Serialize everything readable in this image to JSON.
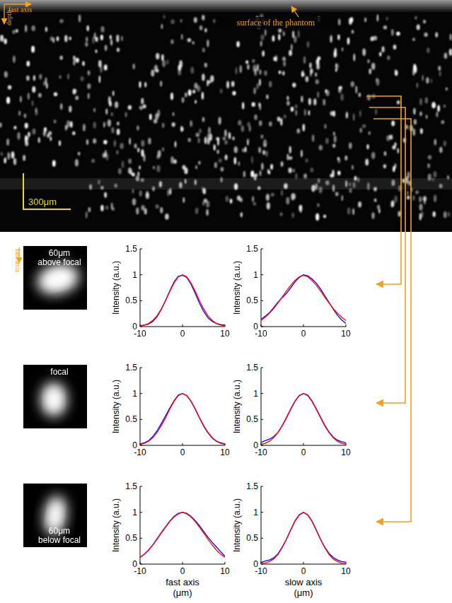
{
  "image": {
    "axis_labels": {
      "horizontal": "fast axis",
      "vertical": "depth"
    },
    "annotation": "surface of the phantom",
    "scale_bar": "300μm"
  },
  "psf_images": {
    "axis_label": "fast axis",
    "labels": [
      "60μm above focal",
      "focal",
      "60μm below focal"
    ]
  },
  "chart_data": [
    {
      "type": "line",
      "ylabel": "Intensity (a.u.)",
      "xlim": [
        -10,
        10
      ],
      "ylim": [
        0,
        1.5
      ],
      "xticks": [
        -10,
        0,
        10
      ],
      "yticks": [
        0,
        0.5,
        1,
        1.5
      ],
      "x": [
        -10,
        -9,
        -8,
        -7,
        -6,
        -5,
        -4,
        -3,
        -2,
        -1,
        0,
        1,
        2,
        3,
        4,
        5,
        6,
        7,
        8,
        9,
        10
      ],
      "series": [
        {
          "color": "#0000ff",
          "values": [
            0.02,
            0.03,
            0.05,
            0.1,
            0.19,
            0.33,
            0.5,
            0.69,
            0.86,
            0.97,
            0.99,
            0.95,
            0.82,
            0.64,
            0.45,
            0.29,
            0.17,
            0.1,
            0.06,
            0.04,
            0.03
          ]
        },
        {
          "color": "#ff0000",
          "values": [
            0.01,
            0.03,
            0.06,
            0.12,
            0.21,
            0.34,
            0.5,
            0.68,
            0.84,
            0.96,
            1.0,
            0.96,
            0.84,
            0.68,
            0.5,
            0.34,
            0.21,
            0.12,
            0.06,
            0.03,
            0.01
          ]
        }
      ]
    },
    {
      "type": "line",
      "ylabel": "Intensity (a.u.)",
      "xlim": [
        -10,
        10
      ],
      "ylim": [
        0,
        1.5
      ],
      "xticks": [
        -10,
        0,
        10
      ],
      "yticks": [
        0,
        0.5,
        1,
        1.5
      ],
      "x": [
        -10,
        -9,
        -8,
        -7,
        -6,
        -5,
        -4,
        -3,
        -2,
        -1,
        0,
        1,
        2,
        3,
        4,
        5,
        6,
        7,
        8,
        9,
        10
      ],
      "series": [
        {
          "color": "#0000ff",
          "values": [
            0.14,
            0.2,
            0.27,
            0.37,
            0.47,
            0.56,
            0.64,
            0.75,
            0.86,
            0.95,
            1.0,
            0.98,
            0.92,
            0.84,
            0.73,
            0.6,
            0.47,
            0.34,
            0.22,
            0.13,
            0.06
          ]
        },
        {
          "color": "#ff0000",
          "values": [
            0.12,
            0.18,
            0.26,
            0.35,
            0.46,
            0.57,
            0.69,
            0.8,
            0.89,
            0.96,
            0.99,
            0.96,
            0.89,
            0.8,
            0.69,
            0.57,
            0.46,
            0.35,
            0.26,
            0.18,
            0.12
          ]
        }
      ]
    },
    {
      "type": "line",
      "ylabel": "Intensity (a.u.)",
      "xlim": [
        -10,
        10
      ],
      "ylim": [
        0,
        1.5
      ],
      "xticks": [
        -10,
        0,
        10
      ],
      "yticks": [
        0,
        0.5,
        1,
        1.5
      ],
      "x": [
        -10,
        -9,
        -8,
        -7,
        -6,
        -5,
        -4,
        -3,
        -2,
        -1,
        0,
        1,
        2,
        3,
        4,
        5,
        6,
        7,
        8,
        9,
        10
      ],
      "series": [
        {
          "color": "#0000ff",
          "values": [
            0.03,
            0.05,
            0.09,
            0.17,
            0.28,
            0.42,
            0.57,
            0.72,
            0.86,
            0.97,
            1.0,
            0.96,
            0.85,
            0.7,
            0.53,
            0.37,
            0.24,
            0.14,
            0.08,
            0.05,
            0.03
          ]
        },
        {
          "color": "#ff0000",
          "values": [
            0.02,
            0.04,
            0.08,
            0.15,
            0.25,
            0.38,
            0.53,
            0.7,
            0.85,
            0.96,
            1.0,
            0.96,
            0.85,
            0.7,
            0.53,
            0.38,
            0.25,
            0.15,
            0.08,
            0.04,
            0.02
          ]
        }
      ]
    },
    {
      "type": "line",
      "ylabel": "Intensity (a.u.)",
      "xlim": [
        -10,
        10
      ],
      "ylim": [
        0,
        1.5
      ],
      "xticks": [
        -10,
        0,
        10
      ],
      "yticks": [
        0,
        0.5,
        1,
        1.5
      ],
      "x": [
        -10,
        -9,
        -8,
        -7,
        -6,
        -5,
        -4,
        -3,
        -2,
        -1,
        0,
        1,
        2,
        3,
        4,
        5,
        6,
        7,
        8,
        9,
        10
      ],
      "series": [
        {
          "color": "#0000ff",
          "values": [
            0.06,
            0.09,
            0.12,
            0.17,
            0.25,
            0.38,
            0.53,
            0.7,
            0.85,
            0.96,
            1.0,
            0.97,
            0.86,
            0.71,
            0.55,
            0.39,
            0.26,
            0.16,
            0.1,
            0.07,
            0.05
          ]
        },
        {
          "color": "#ff0000",
          "values": [
            0.02,
            0.04,
            0.08,
            0.15,
            0.25,
            0.38,
            0.54,
            0.7,
            0.85,
            0.96,
            1.0,
            0.96,
            0.85,
            0.7,
            0.54,
            0.38,
            0.25,
            0.15,
            0.08,
            0.04,
            0.02
          ]
        }
      ]
    },
    {
      "type": "line",
      "ylabel": "Intensity (a.u.)",
      "xlabel": "fast axis (μm)",
      "xlim": [
        -10,
        10
      ],
      "ylim": [
        0,
        1.5
      ],
      "xticks": [
        -10,
        0,
        10
      ],
      "yticks": [
        0,
        0.5,
        1,
        1.5
      ],
      "x": [
        -10,
        -9,
        -8,
        -7,
        -6,
        -5,
        -4,
        -3,
        -2,
        -1,
        0,
        1,
        2,
        3,
        4,
        5,
        6,
        7,
        8,
        9,
        10
      ],
      "series": [
        {
          "color": "#0000ff",
          "values": [
            0.13,
            0.19,
            0.27,
            0.37,
            0.49,
            0.61,
            0.72,
            0.83,
            0.92,
            0.98,
            1.0,
            0.98,
            0.92,
            0.84,
            0.74,
            0.63,
            0.52,
            0.42,
            0.33,
            0.24,
            0.15
          ]
        },
        {
          "color": "#ff0000",
          "values": [
            0.13,
            0.19,
            0.27,
            0.37,
            0.48,
            0.6,
            0.71,
            0.82,
            0.91,
            0.97,
            1.0,
            0.97,
            0.91,
            0.82,
            0.71,
            0.6,
            0.48,
            0.37,
            0.27,
            0.19,
            0.13
          ]
        }
      ]
    },
    {
      "type": "line",
      "ylabel": "Intensity (a.u.)",
      "xlabel": "slow axis (μm)",
      "xlim": [
        -10,
        10
      ],
      "ylim": [
        0,
        1.5
      ],
      "xticks": [
        -10,
        0,
        10
      ],
      "yticks": [
        0,
        0.5,
        1,
        1.5
      ],
      "x": [
        -10,
        -9,
        -8,
        -7,
        -6,
        -5,
        -4,
        -3,
        -2,
        -1,
        0,
        1,
        2,
        3,
        4,
        5,
        6,
        7,
        8,
        9,
        10
      ],
      "series": [
        {
          "color": "#0000ff",
          "values": [
            0.03,
            0.06,
            0.08,
            0.12,
            0.2,
            0.33,
            0.48,
            0.66,
            0.83,
            0.95,
            1.0,
            0.95,
            0.83,
            0.66,
            0.48,
            0.33,
            0.21,
            0.13,
            0.08,
            0.05,
            0.04
          ]
        },
        {
          "color": "#ff0000",
          "values": [
            0.01,
            0.02,
            0.05,
            0.1,
            0.19,
            0.32,
            0.48,
            0.66,
            0.83,
            0.95,
            1.0,
            0.95,
            0.83,
            0.66,
            0.48,
            0.32,
            0.19,
            0.1,
            0.05,
            0.02,
            0.01
          ]
        }
      ]
    }
  ]
}
